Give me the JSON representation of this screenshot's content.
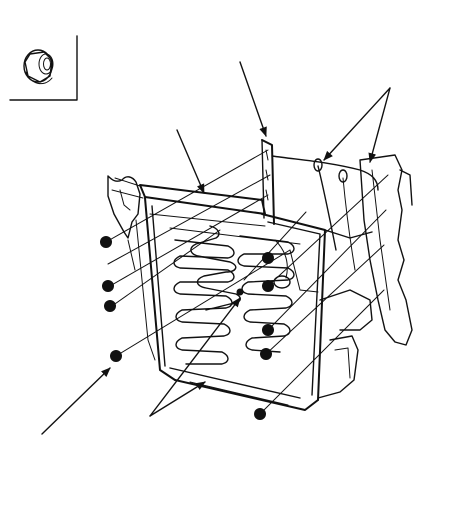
{
  "figure": {
    "legend_box": {
      "icon": "flange-nut-icon"
    },
    "callout_dots": 10,
    "leader_arrows": 6,
    "colors": {
      "line": "#111111",
      "background": "#ffffff"
    }
  }
}
